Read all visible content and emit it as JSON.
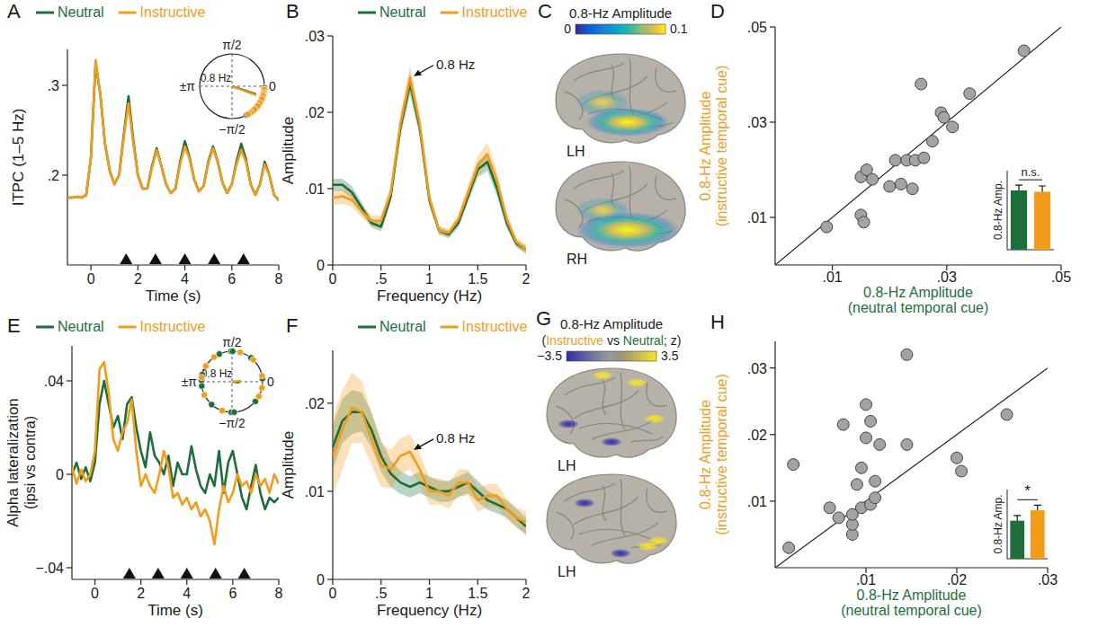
{
  "chart_data": [
    {
      "type": "line",
      "panel": "A",
      "xlabel": "Time (s)",
      "ylabel": "ITPC (1–5 Hz)",
      "legend": "top",
      "xlim": [
        -1,
        8
      ],
      "xticks": [
        0,
        2,
        4,
        6,
        8
      ],
      "ylim": [
        0.1,
        0.34
      ],
      "yticks": [
        {
          "value": 0.2,
          "label": ".2"
        },
        {
          "value": 0.3,
          "label": ".3"
        }
      ],
      "events": [
        1.5,
        2.75,
        4,
        5.25,
        6.5
      ],
      "x": [
        -1,
        -0.8,
        -0.6,
        -0.4,
        -0.2,
        0,
        0.2,
        0.4,
        0.6,
        0.8,
        1,
        1.2,
        1.4,
        1.6,
        1.8,
        2,
        2.2,
        2.4,
        2.6,
        2.8,
        3,
        3.2,
        3.4,
        3.6,
        3.8,
        4,
        4.2,
        4.4,
        4.6,
        4.8,
        5,
        5.2,
        5.4,
        5.6,
        5.8,
        6,
        6.2,
        6.4,
        6.6,
        6.8,
        7,
        7.2,
        7.4,
        7.6,
        7.8,
        8
      ],
      "series": [
        {
          "name": "Neutral",
          "color": "#1e6e3c",
          "values": [
            0.175,
            0.175,
            0.176,
            0.175,
            0.178,
            0.22,
            0.325,
            0.29,
            0.235,
            0.205,
            0.19,
            0.2,
            0.245,
            0.288,
            0.24,
            0.2,
            0.185,
            0.185,
            0.21,
            0.23,
            0.21,
            0.19,
            0.18,
            0.185,
            0.215,
            0.238,
            0.22,
            0.195,
            0.182,
            0.188,
            0.215,
            0.232,
            0.215,
            0.192,
            0.18,
            0.19,
            0.215,
            0.235,
            0.218,
            0.19,
            0.178,
            0.19,
            0.215,
            0.2,
            0.178,
            0.172
          ]
        },
        {
          "name": "Instructive",
          "color": "#f39c1b",
          "values": [
            0.175,
            0.175,
            0.176,
            0.175,
            0.178,
            0.22,
            0.328,
            0.29,
            0.235,
            0.205,
            0.19,
            0.2,
            0.242,
            0.28,
            0.236,
            0.2,
            0.185,
            0.185,
            0.208,
            0.228,
            0.21,
            0.19,
            0.18,
            0.185,
            0.212,
            0.232,
            0.218,
            0.195,
            0.182,
            0.188,
            0.213,
            0.23,
            0.214,
            0.192,
            0.18,
            0.19,
            0.212,
            0.228,
            0.215,
            0.19,
            0.178,
            0.19,
            0.212,
            0.2,
            0.178,
            0.172
          ]
        }
      ]
    },
    {
      "type": "polar",
      "rlim": [
        0,
        1
      ],
      "annotation": "0.8 Hz",
      "angle_ticks": [
        {
          "value": 1.5708,
          "label": "π/2"
        },
        {
          "value": 3.1416,
          "label": "±π"
        },
        {
          "value": 0,
          "label": "0"
        },
        {
          "value": -1.5708,
          "label": "−π/2"
        }
      ],
      "series": [
        {
          "color": "#1e6e3c",
          "angles": [
            -0.05,
            -0.1,
            -0.15,
            -0.2,
            -0.25,
            -0.3,
            -0.35,
            -0.4,
            -0.45,
            -0.5,
            -0.6,
            -0.7,
            -0.85,
            -1.0,
            -1.1
          ],
          "mean_angle": -0.32,
          "mean_length": 0.78
        },
        {
          "color": "#f39c1b",
          "angles": [
            -0.1,
            -0.2,
            -0.25,
            -0.3,
            -0.4,
            -0.55,
            -0.65,
            -0.8,
            -0.95,
            -1.05
          ],
          "mean_angle": -0.36,
          "mean_length": 0.8
        }
      ]
    },
    {
      "type": "line",
      "panel": "B",
      "xlabel": "Frequency (Hz)",
      "ylabel": "Amplitude",
      "legend": "top",
      "xlim": [
        0,
        2
      ],
      "xticks": [
        0,
        {
          "value": 0.5,
          "label": ".5"
        },
        1,
        1.5,
        2
      ],
      "ylim": [
        0,
        0.03
      ],
      "yticks": [
        0,
        {
          "value": 0.01,
          "label": ".01"
        },
        {
          "value": 0.02,
          "label": ".02"
        },
        {
          "value": 0.03,
          "label": ".03"
        }
      ],
      "annotation": {
        "text": "0.8 Hz",
        "x": 0.8,
        "y": 0.0245
      },
      "x": [
        0,
        0.1,
        0.2,
        0.3,
        0.4,
        0.5,
        0.6,
        0.7,
        0.8,
        0.9,
        1,
        1.1,
        1.2,
        1.3,
        1.4,
        1.5,
        1.6,
        1.7,
        1.8,
        1.9,
        2
      ],
      "series": [
        {
          "name": "Neutral",
          "color": "#1e6e3c",
          "values": [
            0.0105,
            0.0105,
            0.0095,
            0.0075,
            0.0055,
            0.005,
            0.009,
            0.018,
            0.0238,
            0.018,
            0.0085,
            0.0045,
            0.004,
            0.0055,
            0.009,
            0.0125,
            0.0135,
            0.01,
            0.0055,
            0.0028,
            0.002
          ],
          "errors": [
            0.0008,
            0.0008,
            0.0008,
            0.0007,
            0.0006,
            0.0006,
            0.0008,
            0.0012,
            0.0015,
            0.0012,
            0.0008,
            0.0005,
            0.0005,
            0.0006,
            0.0008,
            0.001,
            0.0012,
            0.001,
            0.0007,
            0.0005,
            0.0005
          ]
        },
        {
          "name": "Instructive",
          "color": "#f39c1b",
          "values": [
            0.0088,
            0.009,
            0.0085,
            0.007,
            0.0058,
            0.0058,
            0.0095,
            0.0185,
            0.0245,
            0.0185,
            0.0088,
            0.0045,
            0.0042,
            0.006,
            0.0095,
            0.013,
            0.0145,
            0.011,
            0.006,
            0.003,
            0.002
          ],
          "errors": [
            0.001,
            0.001,
            0.0009,
            0.0008,
            0.0007,
            0.0007,
            0.0009,
            0.0013,
            0.0017,
            0.0013,
            0.0009,
            0.0006,
            0.0006,
            0.0007,
            0.001,
            0.0013,
            0.0016,
            0.0012,
            0.0008,
            0.0006,
            0.0006
          ]
        }
      ]
    },
    {
      "type": "brain",
      "panel": "C",
      "colorbar": {
        "title": "0.8-Hz Amplitude",
        "range": [
          0,
          0.1
        ],
        "ticks": [
          0,
          0.1
        ]
      },
      "views": [
        "LH",
        "RH"
      ]
    },
    {
      "type": "scatter",
      "panel": "D",
      "xlabel": "0.8-Hz Amplitude",
      "xsublabel": "(neutral temporal cue)",
      "ylabel": "0.8-Hz Amplitude",
      "ysublabel": "(instructive temporal cue)",
      "xlim": [
        0,
        0.05
      ],
      "ylim": [
        0,
        0.05
      ],
      "xticks": [
        {
          "value": 0.01,
          "label": ".01"
        },
        {
          "value": 0.03,
          "label": ".03"
        },
        {
          "value": 0.05,
          "label": ".05"
        }
      ],
      "yticks": [
        {
          "value": 0.01,
          "label": ".01"
        },
        {
          "value": 0.03,
          "label": ".03"
        },
        {
          "value": 0.05,
          "label": ".05"
        }
      ],
      "color": "#a3a3a3",
      "x": [
        0.009,
        0.015,
        0.0155,
        0.015,
        0.016,
        0.017,
        0.02,
        0.021,
        0.022,
        0.023,
        0.024,
        0.0245,
        0.026,
        0.0255,
        0.0275,
        0.029,
        0.0295,
        0.031,
        0.034,
        0.0435
      ],
      "y": [
        0.008,
        0.0105,
        0.009,
        0.0185,
        0.02,
        0.018,
        0.0165,
        0.022,
        0.017,
        0.022,
        0.016,
        0.022,
        0.0225,
        0.038,
        0.026,
        0.032,
        0.031,
        0.029,
        0.036,
        0.045
      ],
      "inset": {
        "type": "bar",
        "categories": [
          null,
          null
        ],
        "values": [
          0.0225,
          0.022
        ],
        "errors": [
          0.002,
          0.0022
        ],
        "colors": [
          "#1e6e3c",
          "#f39c1b"
        ],
        "ylim": [
          0,
          0.03
        ],
        "tick_labels": false,
        "ylabel": "0.8-Hz Amp.",
        "annotation": "n.s."
      }
    },
    {
      "type": "line",
      "panel": "E",
      "xlabel": "Time (s)",
      "ylabel": "Alpha lateralization",
      "ysublabel": "(ipsi vs contra)",
      "legend": "top",
      "xlim": [
        -1,
        8
      ],
      "xticks": [
        0,
        2,
        4,
        6,
        8
      ],
      "ylim": [
        -0.045,
        0.055
      ],
      "yticks": [
        {
          "value": -0.04,
          "label": "−.04"
        },
        0,
        {
          "value": 0.04,
          "label": ".04"
        }
      ],
      "events": [
        1.5,
        2.75,
        4,
        5.25,
        6.5
      ],
      "x": [
        -1,
        -0.8,
        -0.6,
        -0.4,
        -0.2,
        0,
        0.2,
        0.4,
        0.6,
        0.8,
        1,
        1.2,
        1.4,
        1.6,
        1.8,
        2,
        2.2,
        2.4,
        2.6,
        2.8,
        3,
        3.2,
        3.4,
        3.6,
        3.8,
        4,
        4.2,
        4.4,
        4.6,
        4.8,
        5,
        5.2,
        5.4,
        5.6,
        5.8,
        6,
        6.2,
        6.4,
        6.6,
        6.8,
        7,
        7.2,
        7.4,
        7.6,
        7.8,
        8
      ],
      "series": [
        {
          "name": "Neutral",
          "color": "#1e6e3c",
          "values": [
            0,
            0.005,
            -0.002,
            0.003,
            -0.003,
            0.005,
            0.03,
            0.04,
            0.03,
            0.02,
            0.025,
            0.015,
            0.03,
            0.033,
            0.02,
            0.01,
            0.003,
            0.018,
            0.008,
            0.005,
            0,
            0.008,
            -0.005,
            0.005,
            0,
            0,
            0.012,
            0.002,
            -0.005,
            -0.008,
            0,
            -0.005,
            0.01,
            -0.008,
            0.005,
            0.01,
            0,
            -0.01,
            -0.015,
            -0.005,
            0.004,
            -0.008,
            -0.015,
            -0.01,
            -0.012,
            -0.01
          ]
        },
        {
          "name": "Instructive",
          "color": "#f39c1b",
          "values": [
            0.003,
            -0.004,
            0.002,
            -0.003,
            0,
            0.01,
            0.045,
            0.048,
            0.035,
            0.015,
            0.01,
            0.018,
            0.022,
            0.032,
            0.01,
            -0.005,
            0,
            -0.005,
            -0.008,
            0,
            0.01,
            0.003,
            -0.01,
            -0.008,
            -0.013,
            -0.01,
            -0.015,
            -0.012,
            -0.018,
            -0.015,
            -0.02,
            -0.03,
            -0.015,
            -0.005,
            -0.012,
            -0.008,
            0,
            -0.005,
            -0.003,
            -0.008,
            0,
            -0.005,
            -0.002,
            -0.008,
            0,
            -0.004
          ]
        }
      ]
    },
    {
      "type": "polar",
      "rlim": [
        0,
        1
      ],
      "annotation": "0.8 Hz",
      "angle_ticks": [
        {
          "value": 1.5708,
          "label": "π/2"
        },
        {
          "value": 3.1416,
          "label": "±π"
        },
        {
          "value": 0,
          "label": "0"
        },
        {
          "value": -1.5708,
          "label": "−π/2"
        }
      ],
      "series": [
        {
          "color": "#1e6e3c",
          "angles": [
            1.6,
            1.55,
            3.1,
            -3.0,
            2.9,
            -1.6,
            -1.5,
            0.9,
            -0.7,
            2.0,
            -2.3,
            0.1
          ],
          "mean_angle": -0.1,
          "mean_length": 0.25
        },
        {
          "color": "#f39c1b",
          "angles": [
            1.3,
            2.6,
            -2.7,
            0.2,
            -0.2,
            2.2,
            -1.9,
            3.0,
            -0.5,
            0.8
          ],
          "mean_angle": 0.1,
          "mean_length": 0.3
        }
      ]
    },
    {
      "type": "line",
      "panel": "F",
      "xlabel": "Frequency (Hz)",
      "ylabel": "Amplitude",
      "legend": "top",
      "xlim": [
        0,
        2
      ],
      "xticks": [
        0,
        {
          "value": 0.5,
          "label": ".5"
        },
        1,
        1.5,
        2
      ],
      "ylim": [
        0,
        0.026
      ],
      "yticks": [
        0,
        {
          "value": 0.01,
          "label": ".01"
        },
        {
          "value": 0.02,
          "label": ".02"
        }
      ],
      "annotation": {
        "text": "0.8 Hz",
        "x": 0.8,
        "y": 0.0145
      },
      "x": [
        0,
        0.1,
        0.2,
        0.3,
        0.4,
        0.5,
        0.6,
        0.7,
        0.8,
        0.9,
        1,
        1.1,
        1.2,
        1.3,
        1.4,
        1.5,
        1.6,
        1.7,
        1.8,
        1.9,
        2
      ],
      "series": [
        {
          "name": "Neutral",
          "color": "#1e6e3c",
          "values": [
            0.015,
            0.018,
            0.019,
            0.019,
            0.017,
            0.014,
            0.012,
            0.011,
            0.0105,
            0.011,
            0.0105,
            0.01,
            0.01,
            0.0105,
            0.011,
            0.01,
            0.009,
            0.0085,
            0.008,
            0.007,
            0.006
          ],
          "errors": [
            0.0025,
            0.0025,
            0.0025,
            0.0022,
            0.002,
            0.0018,
            0.0015,
            0.0013,
            0.0012,
            0.0012,
            0.0012,
            0.0012,
            0.0012,
            0.0012,
            0.0012,
            0.0012,
            0.0011,
            0.001,
            0.001,
            0.001,
            0.001
          ]
        },
        {
          "name": "Instructive",
          "color": "#f39c1b",
          "values": [
            0.014,
            0.017,
            0.0195,
            0.019,
            0.016,
            0.013,
            0.0125,
            0.014,
            0.0145,
            0.0125,
            0.01,
            0.01,
            0.0095,
            0.011,
            0.011,
            0.009,
            0.0095,
            0.0095,
            0.008,
            0.007,
            0.0065
          ],
          "errors": [
            0.0045,
            0.0045,
            0.004,
            0.0035,
            0.003,
            0.0025,
            0.0022,
            0.002,
            0.002,
            0.0018,
            0.0015,
            0.0015,
            0.0015,
            0.0015,
            0.0015,
            0.0013,
            0.0013,
            0.0013,
            0.0012,
            0.0012,
            0.0012
          ]
        }
      ]
    },
    {
      "type": "brain",
      "panel": "G",
      "colorbar": {
        "title": "0.8-Hz Amplitude",
        "subtitle": "(Instructive vs Neutral; z)",
        "range": [
          -3.5,
          3.5
        ],
        "ticks": [
          {
            "value": -3.5,
            "label": "−3.5"
          },
          3.5
        ]
      },
      "views": [
        "LH",
        "LH"
      ]
    },
    {
      "type": "scatter",
      "panel": "H",
      "xlabel": "0.8-Hz Amplitude",
      "xsublabel": "(neutral temporal cue)",
      "ylabel": "0.8-Hz Amplitude",
      "ysublabel": "(instructive temporal cue)",
      "xlim": [
        0,
        0.03
      ],
      "ylim": [
        0,
        0.034
      ],
      "xticks": [
        {
          "value": 0.01,
          "label": ".01"
        },
        {
          "value": 0.02,
          "label": ".02"
        },
        {
          "value": 0.03,
          "label": ".03"
        }
      ],
      "yticks": [
        {
          "value": 0.01,
          "label": ".01"
        },
        {
          "value": 0.02,
          "label": ".02"
        },
        {
          "value": 0.03,
          "label": ".03"
        }
      ],
      "color": "#a3a3a3",
      "x": [
        0.002,
        0.0015,
        0.006,
        0.007,
        0.0075,
        0.0085,
        0.0085,
        0.0085,
        0.009,
        0.0095,
        0.0095,
        0.01,
        0.01,
        0.0105,
        0.0105,
        0.011,
        0.011,
        0.0115,
        0.0145,
        0.0145,
        0.02,
        0.0205,
        0.0255
      ],
      "y": [
        0.0155,
        0.003,
        0.009,
        0.0075,
        0.0215,
        0.005,
        0.0065,
        0.008,
        0.0125,
        0.015,
        0.009,
        0.0195,
        0.0245,
        0.022,
        0.0095,
        0.0105,
        0.013,
        0.0185,
        0.032,
        0.0185,
        0.0165,
        0.0145,
        0.023
      ],
      "inset": {
        "type": "bar",
        "categories": [
          null,
          null
        ],
        "values": [
          0.011,
          0.014
        ],
        "errors": [
          0.0015,
          0.0015
        ],
        "colors": [
          "#1e6e3c",
          "#f39c1b"
        ],
        "ylim": [
          0,
          0.02
        ],
        "tick_labels": false,
        "ylabel": "0.8-Hz Amp.",
        "annotation": "*"
      }
    }
  ]
}
